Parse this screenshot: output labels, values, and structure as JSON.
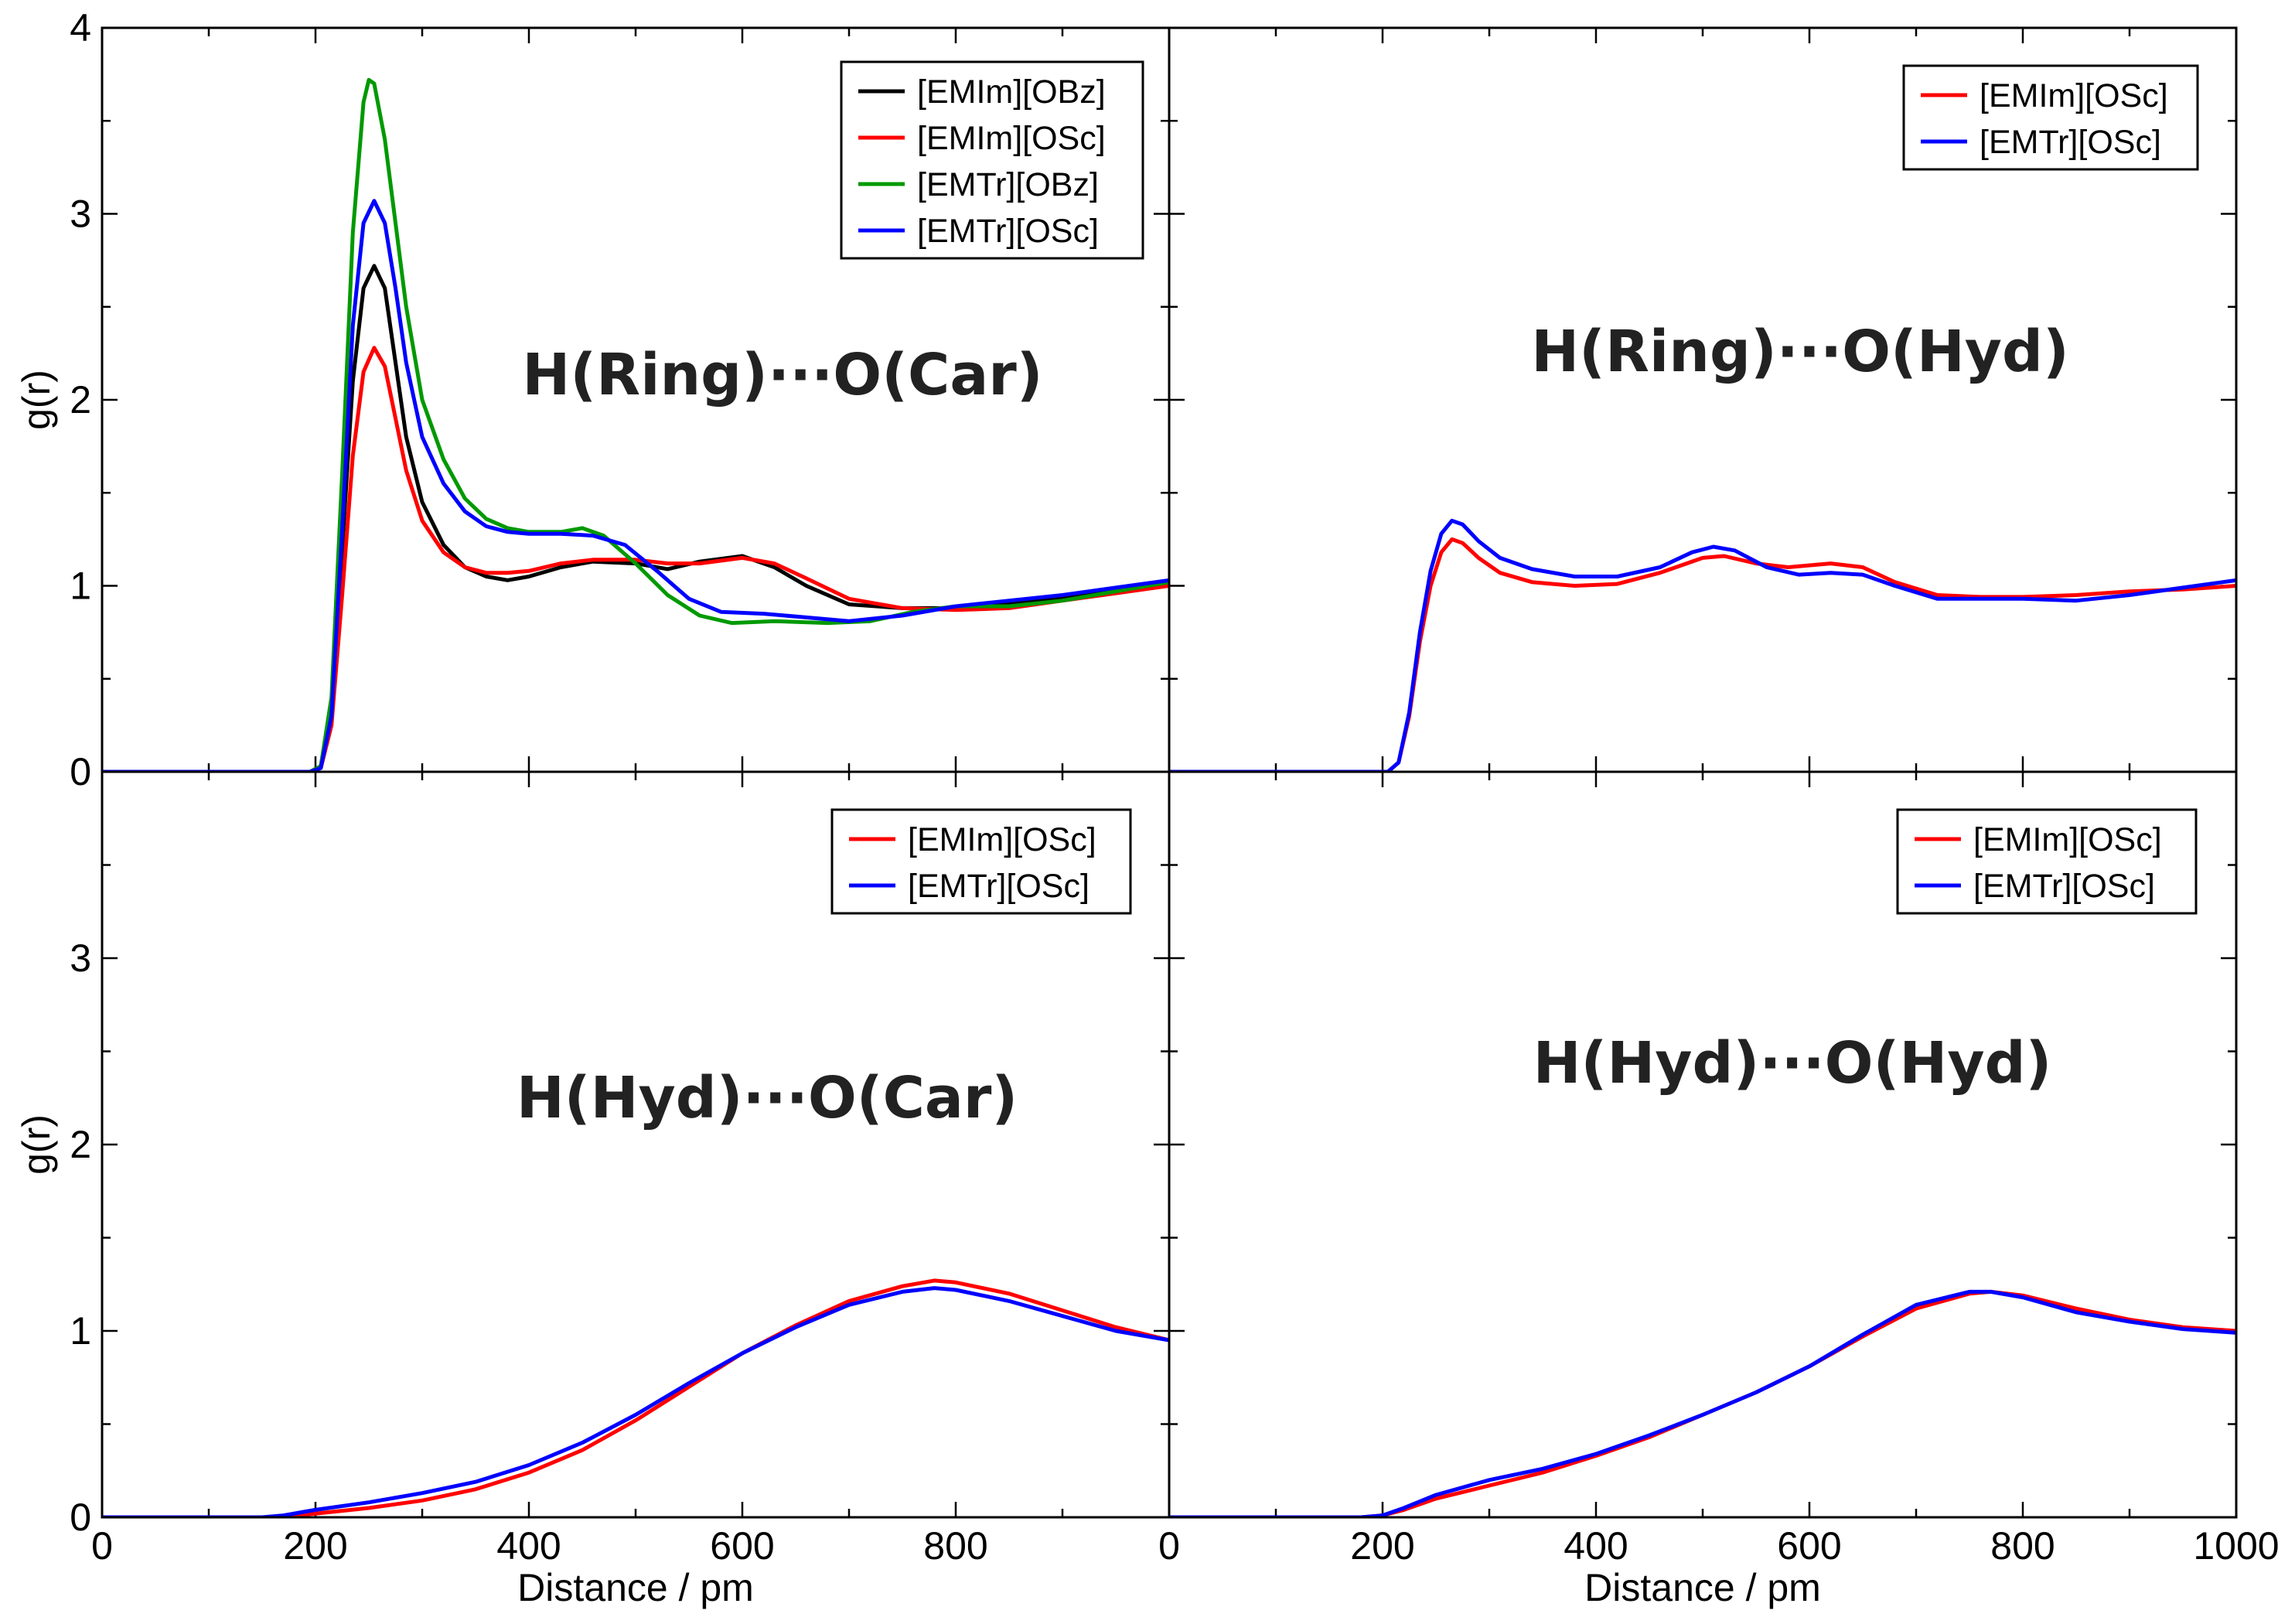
{
  "figure": {
    "x_axis_label": "Distance / pm",
    "y_axis_label": "g(r)"
  },
  "colors": {
    "[EMIm][OBz]": "#000000",
    "[EMIm][OSc]": "#ff0000",
    "[EMTr][OBz]": "#009900",
    "[EMTr][OSc]": "#0000ff"
  },
  "chart_data": [
    {
      "type": "line",
      "panel": "top-left",
      "title": "H(Ring)···O(Car)",
      "xlabel": "",
      "ylabel": "g(r)",
      "xlim": [
        0,
        1000
      ],
      "ylim": [
        0,
        4
      ],
      "x_ticks": [],
      "y_ticks": [
        "0",
        "1",
        "2",
        "3",
        "4"
      ],
      "legend_position": "top-right",
      "series": [
        {
          "name": "[EMIm][OBz]",
          "x": [
            0,
            195,
            205,
            215,
            225,
            235,
            245,
            255,
            265,
            275,
            285,
            300,
            320,
            340,
            360,
            380,
            400,
            430,
            460,
            500,
            530,
            560,
            600,
            630,
            660,
            700,
            750,
            800,
            850,
            900,
            950,
            1000
          ],
          "y": [
            0,
            0,
            0.03,
            0.35,
            1.2,
            2.1,
            2.6,
            2.72,
            2.6,
            2.2,
            1.8,
            1.45,
            1.22,
            1.1,
            1.05,
            1.03,
            1.05,
            1.1,
            1.13,
            1.12,
            1.09,
            1.13,
            1.16,
            1.1,
            1.0,
            0.9,
            0.88,
            0.88,
            0.9,
            0.94,
            0.98,
            1.02
          ]
        },
        {
          "name": "[EMIm][OSc]",
          "x": [
            0,
            195,
            205,
            215,
            225,
            235,
            245,
            255,
            265,
            275,
            285,
            300,
            320,
            340,
            360,
            380,
            400,
            430,
            460,
            500,
            530,
            560,
            600,
            630,
            660,
            700,
            750,
            800,
            850,
            900,
            950,
            1000
          ],
          "y": [
            0,
            0,
            0.02,
            0.25,
            0.95,
            1.7,
            2.15,
            2.28,
            2.18,
            1.9,
            1.62,
            1.35,
            1.18,
            1.1,
            1.07,
            1.07,
            1.08,
            1.12,
            1.14,
            1.14,
            1.12,
            1.12,
            1.15,
            1.12,
            1.04,
            0.93,
            0.88,
            0.87,
            0.88,
            0.92,
            0.96,
            1.0
          ]
        },
        {
          "name": "[EMTr][OBz]",
          "x": [
            0,
            195,
            205,
            215,
            225,
            235,
            245,
            250,
            255,
            265,
            275,
            285,
            300,
            320,
            340,
            360,
            380,
            400,
            430,
            450,
            470,
            500,
            530,
            560,
            590,
            630,
            680,
            720,
            760,
            800,
            850,
            900,
            950,
            1000
          ],
          "y": [
            0,
            0,
            0.03,
            0.4,
            1.6,
            2.9,
            3.6,
            3.72,
            3.7,
            3.4,
            2.95,
            2.5,
            2.0,
            1.68,
            1.47,
            1.36,
            1.31,
            1.29,
            1.29,
            1.31,
            1.27,
            1.12,
            0.95,
            0.84,
            0.8,
            0.81,
            0.8,
            0.81,
            0.86,
            0.89,
            0.89,
            0.92,
            0.97,
            1.02
          ]
        },
        {
          "name": "[EMTr][OSc]",
          "x": [
            0,
            195,
            205,
            215,
            225,
            235,
            245,
            255,
            265,
            275,
            285,
            300,
            320,
            340,
            360,
            380,
            400,
            430,
            460,
            490,
            520,
            550,
            580,
            620,
            660,
            700,
            750,
            800,
            850,
            900,
            950,
            1000
          ],
          "y": [
            0,
            0,
            0.02,
            0.3,
            1.3,
            2.4,
            2.95,
            3.07,
            2.95,
            2.6,
            2.2,
            1.8,
            1.55,
            1.4,
            1.32,
            1.29,
            1.28,
            1.28,
            1.27,
            1.22,
            1.08,
            0.93,
            0.86,
            0.85,
            0.83,
            0.81,
            0.84,
            0.89,
            0.92,
            0.95,
            0.99,
            1.03
          ]
        }
      ]
    },
    {
      "type": "line",
      "panel": "top-right",
      "title": "H(Ring)···O(Hyd)",
      "xlabel": "",
      "ylabel": "",
      "xlim": [
        0,
        1000
      ],
      "ylim": [
        0,
        4
      ],
      "x_ticks": [],
      "y_ticks": [],
      "legend_position": "top-right",
      "series": [
        {
          "name": "[EMIm][OSc]",
          "x": [
            0,
            205,
            215,
            225,
            235,
            245,
            255,
            265,
            275,
            290,
            310,
            340,
            380,
            420,
            460,
            500,
            520,
            550,
            580,
            620,
            650,
            680,
            720,
            760,
            800,
            850,
            900,
            950,
            1000
          ],
          "y": [
            0,
            0,
            0.05,
            0.3,
            0.7,
            1.0,
            1.18,
            1.25,
            1.23,
            1.15,
            1.07,
            1.02,
            1.0,
            1.01,
            1.07,
            1.15,
            1.16,
            1.12,
            1.1,
            1.12,
            1.1,
            1.02,
            0.95,
            0.94,
            0.94,
            0.95,
            0.97,
            0.98,
            1.0
          ]
        },
        {
          "name": "[EMTr][OSc]",
          "x": [
            0,
            205,
            215,
            225,
            235,
            245,
            255,
            265,
            275,
            290,
            310,
            340,
            380,
            420,
            460,
            490,
            510,
            530,
            560,
            590,
            620,
            650,
            680,
            720,
            760,
            800,
            850,
            900,
            950,
            1000
          ],
          "y": [
            0,
            0,
            0.05,
            0.32,
            0.75,
            1.08,
            1.28,
            1.35,
            1.33,
            1.24,
            1.15,
            1.09,
            1.05,
            1.05,
            1.1,
            1.18,
            1.21,
            1.19,
            1.1,
            1.06,
            1.07,
            1.06,
            1.0,
            0.93,
            0.93,
            0.93,
            0.92,
            0.95,
            0.99,
            1.03
          ]
        }
      ]
    },
    {
      "type": "line",
      "panel": "bottom-left",
      "title": "H(Hyd)···O(Car)",
      "xlabel": "Distance / pm",
      "ylabel": "g(r)",
      "xlim": [
        0,
        1000
      ],
      "ylim": [
        0,
        4
      ],
      "x_ticks": [
        "0",
        "200",
        "400",
        "600",
        "800"
      ],
      "y_ticks": [
        "0",
        "1",
        "2",
        "3"
      ],
      "legend_position": "top-right",
      "series": [
        {
          "name": "[EMIm][OSc]",
          "x": [
            0,
            160,
            180,
            200,
            250,
            300,
            350,
            400,
            450,
            500,
            550,
            600,
            650,
            700,
            750,
            780,
            800,
            850,
            900,
            950,
            1000
          ],
          "y": [
            0,
            0,
            0.01,
            0.02,
            0.05,
            0.09,
            0.15,
            0.24,
            0.36,
            0.52,
            0.7,
            0.88,
            1.03,
            1.16,
            1.24,
            1.27,
            1.26,
            1.2,
            1.11,
            1.02,
            0.95
          ]
        },
        {
          "name": "[EMTr][OSc]",
          "x": [
            0,
            150,
            170,
            200,
            250,
            300,
            350,
            400,
            450,
            500,
            550,
            600,
            650,
            700,
            750,
            780,
            800,
            850,
            900,
            950,
            1000
          ],
          "y": [
            0,
            0,
            0.01,
            0.04,
            0.08,
            0.13,
            0.19,
            0.28,
            0.4,
            0.55,
            0.72,
            0.88,
            1.02,
            1.14,
            1.21,
            1.23,
            1.22,
            1.16,
            1.08,
            1.0,
            0.95
          ]
        }
      ]
    },
    {
      "type": "line",
      "panel": "bottom-right",
      "title": "H(Hyd)···O(Hyd)",
      "xlabel": "Distance / pm",
      "ylabel": "",
      "xlim": [
        0,
        1000
      ],
      "ylim": [
        0,
        4
      ],
      "x_ticks": [
        "0",
        "200",
        "400",
        "600",
        "800",
        "1000"
      ],
      "y_ticks": [],
      "legend_position": "top-right",
      "series": [
        {
          "name": "[EMIm][OSc]",
          "x": [
            0,
            180,
            200,
            220,
            250,
            300,
            350,
            400,
            450,
            500,
            550,
            600,
            650,
            700,
            750,
            770,
            800,
            850,
            900,
            950,
            1000
          ],
          "y": [
            0,
            0,
            0.01,
            0.04,
            0.1,
            0.17,
            0.24,
            0.33,
            0.43,
            0.55,
            0.67,
            0.81,
            0.97,
            1.12,
            1.2,
            1.21,
            1.19,
            1.12,
            1.06,
            1.02,
            1.0
          ]
        },
        {
          "name": "[EMTr][OSc]",
          "x": [
            0,
            180,
            200,
            220,
            250,
            300,
            350,
            400,
            450,
            500,
            550,
            600,
            650,
            700,
            750,
            770,
            800,
            850,
            900,
            950,
            1000
          ],
          "y": [
            0,
            0,
            0.01,
            0.05,
            0.12,
            0.2,
            0.26,
            0.34,
            0.44,
            0.55,
            0.67,
            0.81,
            0.98,
            1.14,
            1.21,
            1.21,
            1.18,
            1.1,
            1.05,
            1.01,
            0.99
          ]
        }
      ]
    }
  ]
}
